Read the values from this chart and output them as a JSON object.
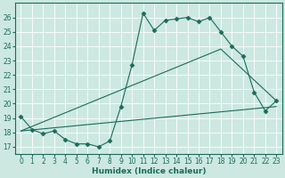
{
  "xlabel": "Humidex (Indice chaleur)",
  "background_color": "#cce8e0",
  "grid_color": "#b0d8d0",
  "line_color": "#1a6b5a",
  "xlim": [
    -0.5,
    23.5
  ],
  "ylim": [
    16.5,
    27.0
  ],
  "xticks": [
    0,
    1,
    2,
    3,
    4,
    5,
    6,
    7,
    8,
    9,
    10,
    11,
    12,
    13,
    14,
    15,
    16,
    17,
    18,
    19,
    20,
    21,
    22,
    23
  ],
  "yticks": [
    17,
    18,
    19,
    20,
    21,
    22,
    23,
    24,
    25,
    26
  ],
  "series1_x": [
    0,
    1,
    2,
    3,
    4,
    5,
    6,
    7,
    8,
    9,
    10,
    11,
    12,
    13,
    14,
    15,
    16,
    17,
    18,
    19,
    20,
    21,
    22,
    23
  ],
  "series1_y": [
    19.1,
    18.2,
    17.9,
    18.1,
    17.5,
    17.2,
    17.2,
    17.0,
    17.4,
    19.8,
    22.7,
    26.3,
    25.1,
    25.8,
    25.9,
    26.0,
    25.7,
    26.0,
    25.0,
    24.0,
    23.3,
    20.8,
    19.5,
    20.2
  ],
  "series2_x": [
    0,
    23
  ],
  "series2_y": [
    18.1,
    19.8
  ],
  "series3_x": [
    0,
    18,
    23
  ],
  "series3_y": [
    18.1,
    23.8,
    20.2
  ],
  "figsize": [
    3.2,
    2.0
  ],
  "dpi": 100
}
